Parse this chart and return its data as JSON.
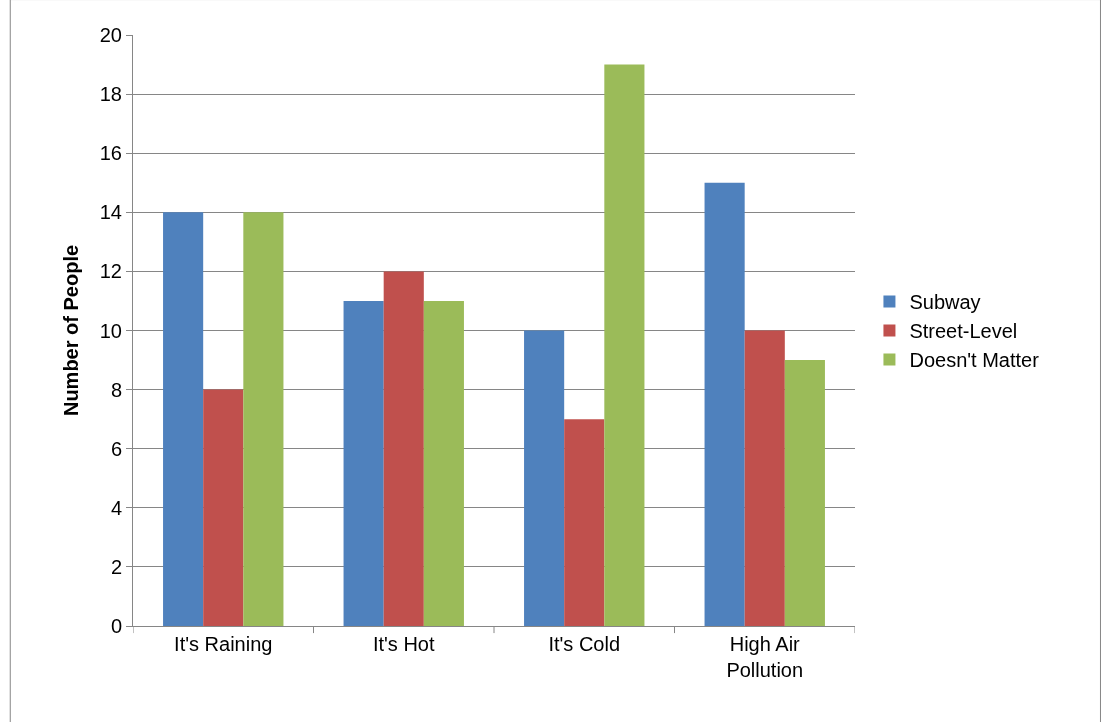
{
  "chart_data": {
    "type": "bar",
    "ylabel": "Number of People",
    "categories": [
      "It's Raining",
      "It's Hot",
      "It's Cold",
      "High Air Pollution"
    ],
    "series": [
      {
        "name": "Subway",
        "color": "#4f81bd",
        "values": [
          14,
          11,
          10,
          15
        ]
      },
      {
        "name": "Street-Level",
        "color": "#c0504d",
        "values": [
          8,
          12,
          7,
          10
        ]
      },
      {
        "name": "Doesn't Matter",
        "color": "#9bbb59",
        "values": [
          14,
          11,
          19,
          9
        ]
      }
    ],
    "ylim": [
      0,
      20
    ],
    "yticks": [
      0,
      2,
      4,
      6,
      8,
      10,
      12,
      14,
      16,
      18,
      20
    ],
    "grid": "y",
    "legend": "right"
  }
}
